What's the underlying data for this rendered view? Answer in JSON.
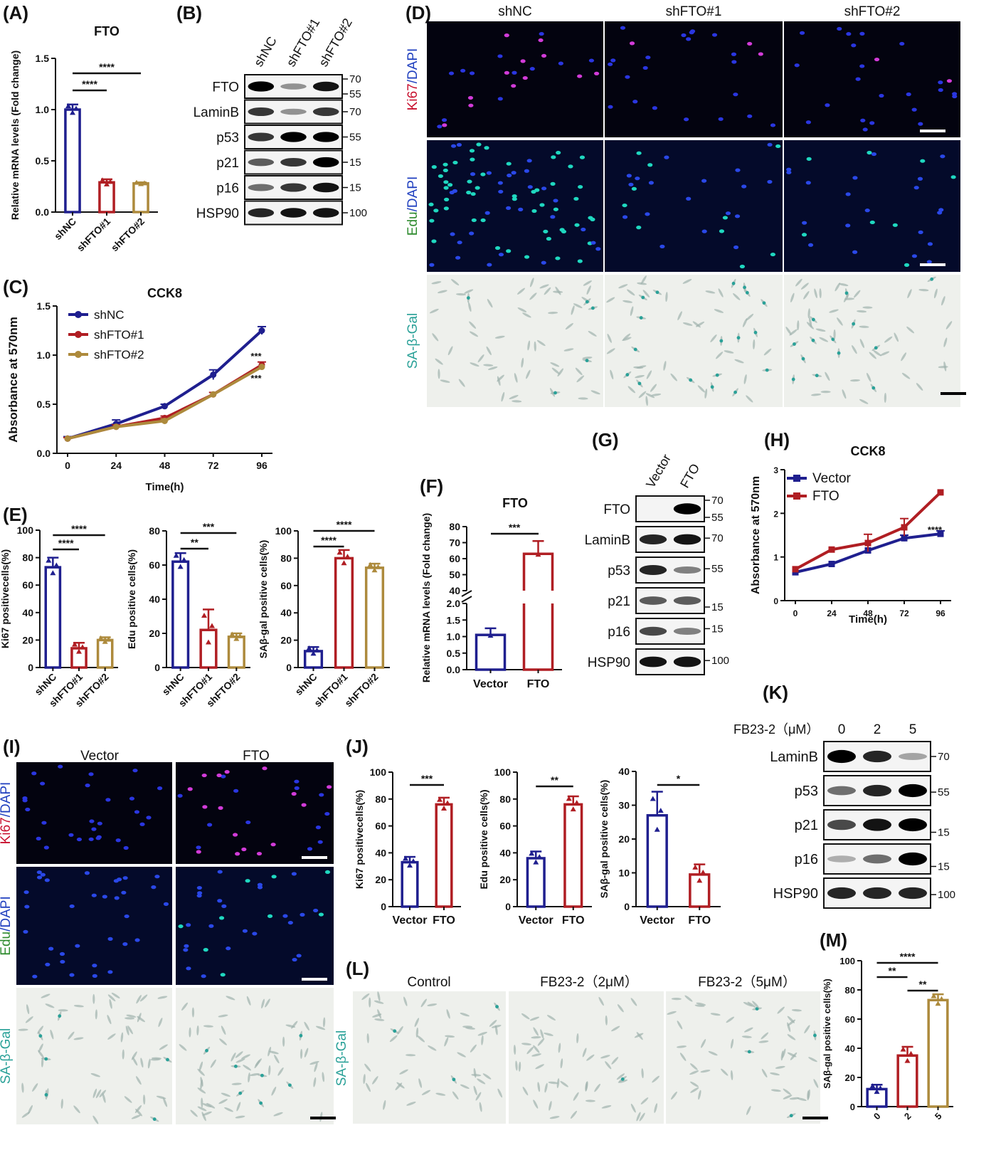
{
  "colors": {
    "blue": "#1f1f8f",
    "red": "#b01e23",
    "gold": "#ad8a3c",
    "black": "#111111",
    "micro_bg": "#03030f",
    "sagal_bg": "#eef0ec",
    "ki67": "#c8102e",
    "dapi": "#1f3fbf",
    "edu": "#2e8b2e",
    "sagal": "#2aa198"
  },
  "panels": {
    "A": "(A)",
    "B": "(B)",
    "C": "(C)",
    "D": "(D)",
    "E": "(E)",
    "F": "(F)",
    "G": "(G)",
    "H": "(H)",
    "I": "(I)",
    "J": "(J)",
    "K": "(K)",
    "L": "(L)",
    "M": "(M)"
  },
  "stain_labels": {
    "ki67": "Ki67",
    "edu": "Edu",
    "slash_dapi": "/DAPI",
    "sagal": "SA-β-Gal"
  },
  "panel_D": {
    "columns": [
      "shNC",
      "shFTO#1",
      "shFTO#2"
    ]
  },
  "panel_I": {
    "columns": [
      "Vector",
      "FTO"
    ]
  },
  "panel_L": {
    "columns": [
      "Control",
      "FB23-2（2μM）",
      "FB23-2（5μM）"
    ]
  },
  "blots": {
    "B": {
      "lanes": [
        "shNC",
        "shFTO#1",
        "shFTO#2"
      ],
      "rows": [
        {
          "protein": "FTO",
          "markers": [
            "70",
            "55"
          ]
        },
        {
          "protein": "LaminB",
          "markers": [
            "70"
          ]
        },
        {
          "protein": "p53",
          "markers": [
            "55"
          ]
        },
        {
          "protein": "p21",
          "markers": [
            "15"
          ]
        },
        {
          "protein": "p16",
          "markers": [
            "15"
          ]
        },
        {
          "protein": "HSP90",
          "markers": [
            "100"
          ]
        }
      ]
    },
    "G": {
      "lanes": [
        "Vector",
        "FTO"
      ],
      "rows": [
        {
          "protein": "FTO",
          "markers": [
            "70",
            "55"
          ]
        },
        {
          "protein": "LaminB",
          "markers": [
            "70"
          ]
        },
        {
          "protein": "p53",
          "markers": [
            "55"
          ]
        },
        {
          "protein": "p21",
          "markers": [
            "15"
          ]
        },
        {
          "protein": "p16",
          "markers": [
            "15"
          ]
        },
        {
          "protein": "HSP90",
          "markers": [
            "100"
          ]
        }
      ]
    },
    "K": {
      "treatment": "FB23-2（μM）",
      "lanes": [
        "0",
        "2",
        "5"
      ],
      "rows": [
        {
          "protein": "LaminB",
          "markers": [
            "70"
          ]
        },
        {
          "protein": "p53",
          "markers": [
            "55"
          ]
        },
        {
          "protein": "p21",
          "markers": [
            "15"
          ]
        },
        {
          "protein": "p16",
          "markers": [
            "15"
          ]
        },
        {
          "protein": "HSP90",
          "markers": [
            "100"
          ]
        }
      ]
    }
  },
  "chart_data": [
    {
      "id": "A",
      "type": "bar",
      "title": "FTO",
      "ylabel": "Relative mRNA levels (Fold change)",
      "categories": [
        "shNC",
        "shFTO#1",
        "shFTO#2"
      ],
      "values": [
        1.0,
        0.29,
        0.28
      ],
      "errors": [
        0.05,
        0.03,
        0.01
      ],
      "ylim": [
        0,
        1.5
      ],
      "yticks": [
        "0.0",
        "0.5",
        "1.0",
        "1.5"
      ],
      "significance": [
        {
          "label": "****"
        },
        {
          "label": "****"
        }
      ]
    },
    {
      "id": "C",
      "type": "line",
      "title": "CCK8",
      "xlabel": "Time(h)",
      "ylabel": "Absorbance at 570nm",
      "x": [
        0,
        24,
        48,
        72,
        96
      ],
      "ylim": [
        0,
        1.5
      ],
      "yticks": [
        "0.0",
        "0.5",
        "1.0",
        "1.5"
      ],
      "legend": "top-left",
      "series": [
        {
          "name": "shNC",
          "values": [
            0.15,
            0.3,
            0.48,
            0.8,
            1.25
          ]
        },
        {
          "name": "shFTO#1",
          "values": [
            0.15,
            0.27,
            0.36,
            0.6,
            0.9
          ]
        },
        {
          "name": "shFTO#2",
          "values": [
            0.15,
            0.27,
            0.33,
            0.6,
            0.88
          ]
        }
      ],
      "annotations": [
        "***",
        "***"
      ]
    },
    {
      "id": "E1",
      "type": "bar",
      "ylabel": "Ki67 positivecells(%)",
      "categories": [
        "shNC",
        "shFTO#1",
        "shFTO#2"
      ],
      "values": [
        73,
        14,
        20
      ],
      "errors": [
        7,
        4,
        2
      ],
      "ylim": [
        0,
        100
      ],
      "yticks": [
        "0",
        "20",
        "40",
        "60",
        "80",
        "100"
      ],
      "significance": [
        {
          "label": "****"
        },
        {
          "label": "****"
        }
      ]
    },
    {
      "id": "E2",
      "type": "bar",
      "ylabel": "Edu positive cells(%)",
      "categories": [
        "shNC",
        "shFTO#1",
        "shFTO#2"
      ],
      "values": [
        62,
        22,
        18
      ],
      "errors": [
        5,
        12,
        2
      ],
      "ylim": [
        0,
        80
      ],
      "yticks": [
        "0",
        "20",
        "40",
        "60",
        "80"
      ],
      "significance": [
        {
          "label": "**"
        },
        {
          "label": "***"
        }
      ]
    },
    {
      "id": "E3",
      "type": "bar",
      "ylabel": "SAβ-gal positive cells(%)",
      "categories": [
        "shNC",
        "shFTO#1",
        "shFTO#2"
      ],
      "values": [
        12,
        80,
        73
      ],
      "errors": [
        3,
        6,
        3
      ],
      "ylim": [
        0,
        100
      ],
      "yticks": [
        "0",
        "20",
        "40",
        "60",
        "80",
        "100"
      ],
      "significance": [
        {
          "label": "****"
        },
        {
          "label": "****"
        }
      ]
    },
    {
      "id": "F",
      "type": "bar",
      "title": "FTO",
      "ylabel": "Relative mRNA levels (Fold change)",
      "categories": [
        "Vector",
        "FTO"
      ],
      "values": [
        1.05,
        63
      ],
      "errors": [
        0.2,
        8
      ],
      "broken_axis": {
        "lower_ticks": [
          "0.0",
          "0.5",
          "1.0",
          "1.5",
          "2.0"
        ],
        "upper_ticks": [
          "40",
          "50",
          "60",
          "70",
          "80"
        ]
      },
      "significance": [
        {
          "label": "***"
        }
      ]
    },
    {
      "id": "H",
      "type": "line",
      "title": "CCK8",
      "xlabel": "Time(h)",
      "ylabel": "Absorbance at 570nm",
      "x": [
        0,
        24,
        48,
        72,
        96
      ],
      "ylim": [
        0,
        3
      ],
      "yticks": [
        "0",
        "1",
        "2",
        "3"
      ],
      "legend": "top-left",
      "series": [
        {
          "name": "Vector",
          "values": [
            0.65,
            0.84,
            1.15,
            1.43,
            1.53
          ]
        },
        {
          "name": "FTO",
          "values": [
            0.72,
            1.17,
            1.32,
            1.68,
            2.48
          ]
        }
      ],
      "annotations": [
        "****"
      ]
    },
    {
      "id": "J1",
      "type": "bar",
      "ylabel": "Ki67 positivecells(%)",
      "categories": [
        "Vector",
        "FTO"
      ],
      "values": [
        33,
        76
      ],
      "errors": [
        4,
        5
      ],
      "ylim": [
        0,
        100
      ],
      "yticks": [
        "0",
        "20",
        "40",
        "60",
        "80",
        "100"
      ],
      "significance": [
        {
          "label": "***"
        }
      ]
    },
    {
      "id": "J2",
      "type": "bar",
      "ylabel": "Edu positive cells(%)",
      "categories": [
        "Vector",
        "FTO"
      ],
      "values": [
        36,
        76
      ],
      "errors": [
        5,
        6
      ],
      "ylim": [
        0,
        100
      ],
      "yticks": [
        "0",
        "20",
        "40",
        "60",
        "80",
        "100"
      ],
      "significance": [
        {
          "label": "**"
        }
      ]
    },
    {
      "id": "J3",
      "type": "bar",
      "ylabel": "SAβ-gal positive cells(%)",
      "categories": [
        "Vector",
        "FTO"
      ],
      "values": [
        27,
        9.5
      ],
      "errors": [
        7,
        3
      ],
      "ylim": [
        0,
        40
      ],
      "yticks": [
        "0",
        "10",
        "20",
        "30",
        "40"
      ],
      "significance": [
        {
          "label": "*"
        }
      ]
    },
    {
      "id": "M",
      "type": "bar",
      "ylabel": "SAβ-gal positive cells(%)",
      "categories": [
        "0",
        "2",
        "5"
      ],
      "values": [
        12,
        35,
        73
      ],
      "errors": [
        3,
        6,
        4
      ],
      "ylim": [
        0,
        100
      ],
      "yticks": [
        "0",
        "20",
        "40",
        "60",
        "80",
        "100"
      ],
      "significance": [
        {
          "label": "**"
        },
        {
          "label": "**"
        },
        {
          "label": "****"
        }
      ]
    }
  ]
}
